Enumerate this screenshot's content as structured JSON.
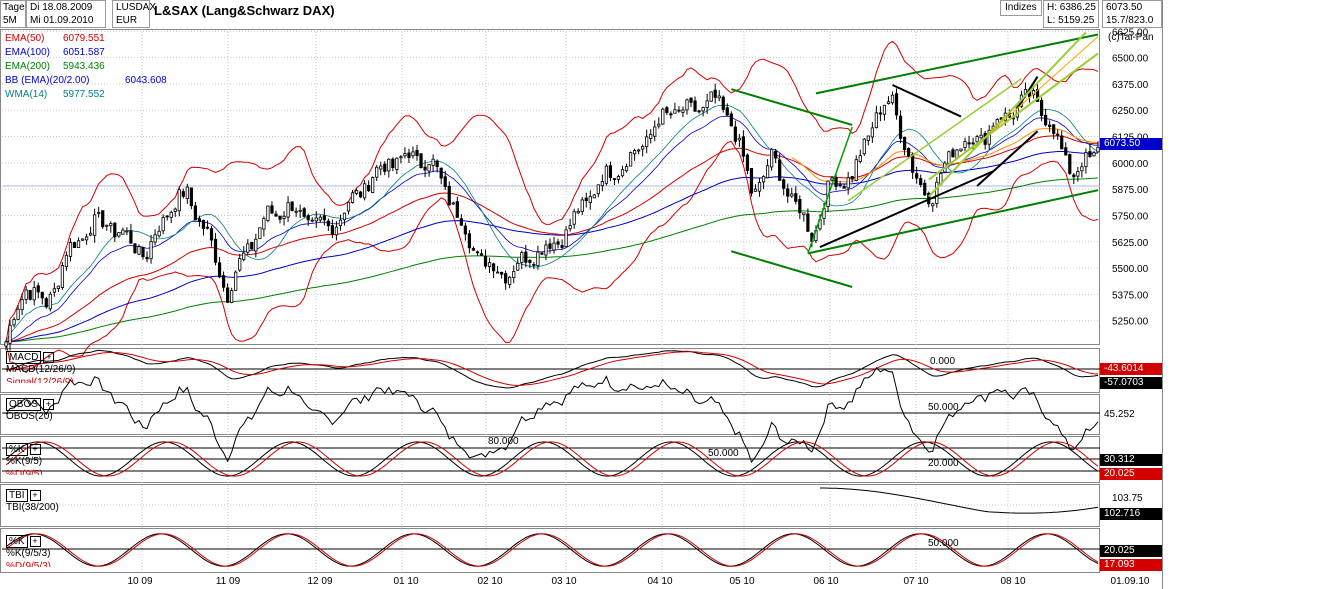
{
  "header": {
    "timeframe_top": "Tage",
    "timeframe_bottom": "5M",
    "date_from": "Di 18.08.2009",
    "date_to": "Mi 01.09.2010",
    "instrument": "LUSDAX",
    "currency": "EUR",
    "title": "L&SAX (Lang&Schwarz DAX)",
    "index_label": "Indizes",
    "high": "H: 6386.25",
    "low": "L: 5159.25",
    "price": "6073.50",
    "change": "15.7/823.0",
    "copyright": "(c)Tai-Pan"
  },
  "legend": [
    {
      "name": "EMA(50)",
      "value": "6079.551",
      "color": "#d40000"
    },
    {
      "name": "EMA(100)",
      "value": "6051.587",
      "color": "#0000cc"
    },
    {
      "name": "EMA(200)",
      "value": "5943.436",
      "color": "#008000"
    },
    {
      "name": "BB (EMA)(20/2.00)",
      "value": "6043.608",
      "color": "#0000cc"
    },
    {
      "name": "WMA(14)",
      "value": "5977.552",
      "color": "#008080"
    }
  ],
  "price_tag": "6073.50",
  "panels": {
    "macd": {
      "box": "MACD",
      "line1": "MACD(12/26/9)",
      "line2": "Signal(12/26/9)",
      "ref": "0.000",
      "tag1": "-43.6014",
      "tag2": "-57.0703"
    },
    "obos": {
      "box": "OBOS",
      "line1": "OBOS(20)",
      "ref": "50.000",
      "tag1": "45.252"
    },
    "stoch": {
      "box": "%K",
      "line1": "%K(9/5)",
      "line2": "%D(9/5)",
      "ref_hi": "80.000",
      "ref_mid": "50.000",
      "ref_lo": "20.000",
      "tag1": "30.312",
      "tag2": "20.025"
    },
    "tbi": {
      "box": "TBI",
      "line1": "TBI(38/200)",
      "ref": "103.75",
      "tag1": "102.716"
    },
    "stoch2": {
      "box": "%K",
      "line1": "%K(9/5/3)",
      "line2": "%D(9/5/3)",
      "ref": "50.000",
      "tag1": "20.025",
      "tag2": "17.093"
    }
  },
  "chart_data": {
    "type": "candlestick",
    "title": "L&SAX (Lang&Schwarz DAX)",
    "ylim": [
      5159.25,
      6636
    ],
    "y_ticks": [
      "6625.00",
      "6500.00",
      "6375.00",
      "6250.00",
      "6125.00",
      "6000.00",
      "5875.00",
      "5750.00",
      "5625.00",
      "5500.00",
      "5375.00",
      "5250.00"
    ],
    "x_ticks": [
      "10 09",
      "11 09",
      "12 09",
      "01 10",
      "02 10",
      "03 10",
      "04 10",
      "05 10",
      "06 10",
      "07 10",
      "08 10",
      "01.09.10"
    ],
    "close_path": [
      [
        "2009-08-18",
        5150
      ],
      [
        "2009-08-25",
        5420
      ],
      [
        "2009-09-01",
        5320
      ],
      [
        "2009-09-08",
        5560
      ],
      [
        "2009-09-15",
        5690
      ],
      [
        "2009-09-22",
        5720
      ],
      [
        "2009-09-29",
        5640
      ],
      [
        "2009-10-06",
        5560
      ],
      [
        "2009-10-13",
        5780
      ],
      [
        "2009-10-20",
        5850
      ],
      [
        "2009-10-27",
        5650
      ],
      [
        "2009-11-03",
        5380
      ],
      [
        "2009-11-10",
        5600
      ],
      [
        "2009-11-17",
        5750
      ],
      [
        "2009-11-24",
        5790
      ],
      [
        "2009-12-01",
        5720
      ],
      [
        "2009-12-08",
        5690
      ],
      [
        "2009-12-15",
        5800
      ],
      [
        "2009-12-22",
        5920
      ],
      [
        "2009-12-29",
        6000
      ],
      [
        "2010-01-05",
        6030
      ],
      [
        "2010-01-12",
        6010
      ],
      [
        "2010-01-19",
        5840
      ],
      [
        "2010-01-26",
        5620
      ],
      [
        "2010-02-02",
        5500
      ],
      [
        "2010-02-09",
        5480
      ],
      [
        "2010-02-16",
        5570
      ],
      [
        "2010-02-23",
        5600
      ],
      [
        "2010-03-02",
        5700
      ],
      [
        "2010-03-09",
        5860
      ],
      [
        "2010-03-16",
        5960
      ],
      [
        "2010-03-23",
        6020
      ],
      [
        "2010-03-30",
        6150
      ],
      [
        "2010-04-06",
        6250
      ],
      [
        "2010-04-13",
        6240
      ],
      [
        "2010-04-20",
        6300
      ],
      [
        "2010-04-27",
        6200
      ],
      [
        "2010-05-04",
        5850
      ],
      [
        "2010-05-11",
        6020
      ],
      [
        "2010-05-18",
        5820
      ],
      [
        "2010-05-25",
        5660
      ],
      [
        "2010-06-01",
        5920
      ],
      [
        "2010-06-08",
        5930
      ],
      [
        "2010-06-15",
        6210
      ],
      [
        "2010-06-22",
        6300
      ],
      [
        "2010-06-29",
        5930
      ],
      [
        "2010-07-06",
        5840
      ],
      [
        "2010-07-13",
        6090
      ],
      [
        "2010-07-20",
        6100
      ],
      [
        "2010-07-27",
        6180
      ],
      [
        "2010-08-03",
        6260
      ],
      [
        "2010-08-10",
        6320
      ],
      [
        "2010-08-17",
        6130
      ],
      [
        "2010-08-24",
        5940
      ],
      [
        "2010-09-01",
        6073.5
      ]
    ],
    "series": [
      {
        "name": "EMA(50)",
        "last": 6079.551
      },
      {
        "name": "EMA(100)",
        "last": 6051.587
      },
      {
        "name": "EMA(200)",
        "last": 5943.436
      },
      {
        "name": "BB (EMA)(20/2.00)",
        "last": 6043.608
      },
      {
        "name": "WMA(14)",
        "last": 5977.552
      }
    ],
    "high": 6386.25,
    "low": 5159.25,
    "last": 6073.5
  }
}
